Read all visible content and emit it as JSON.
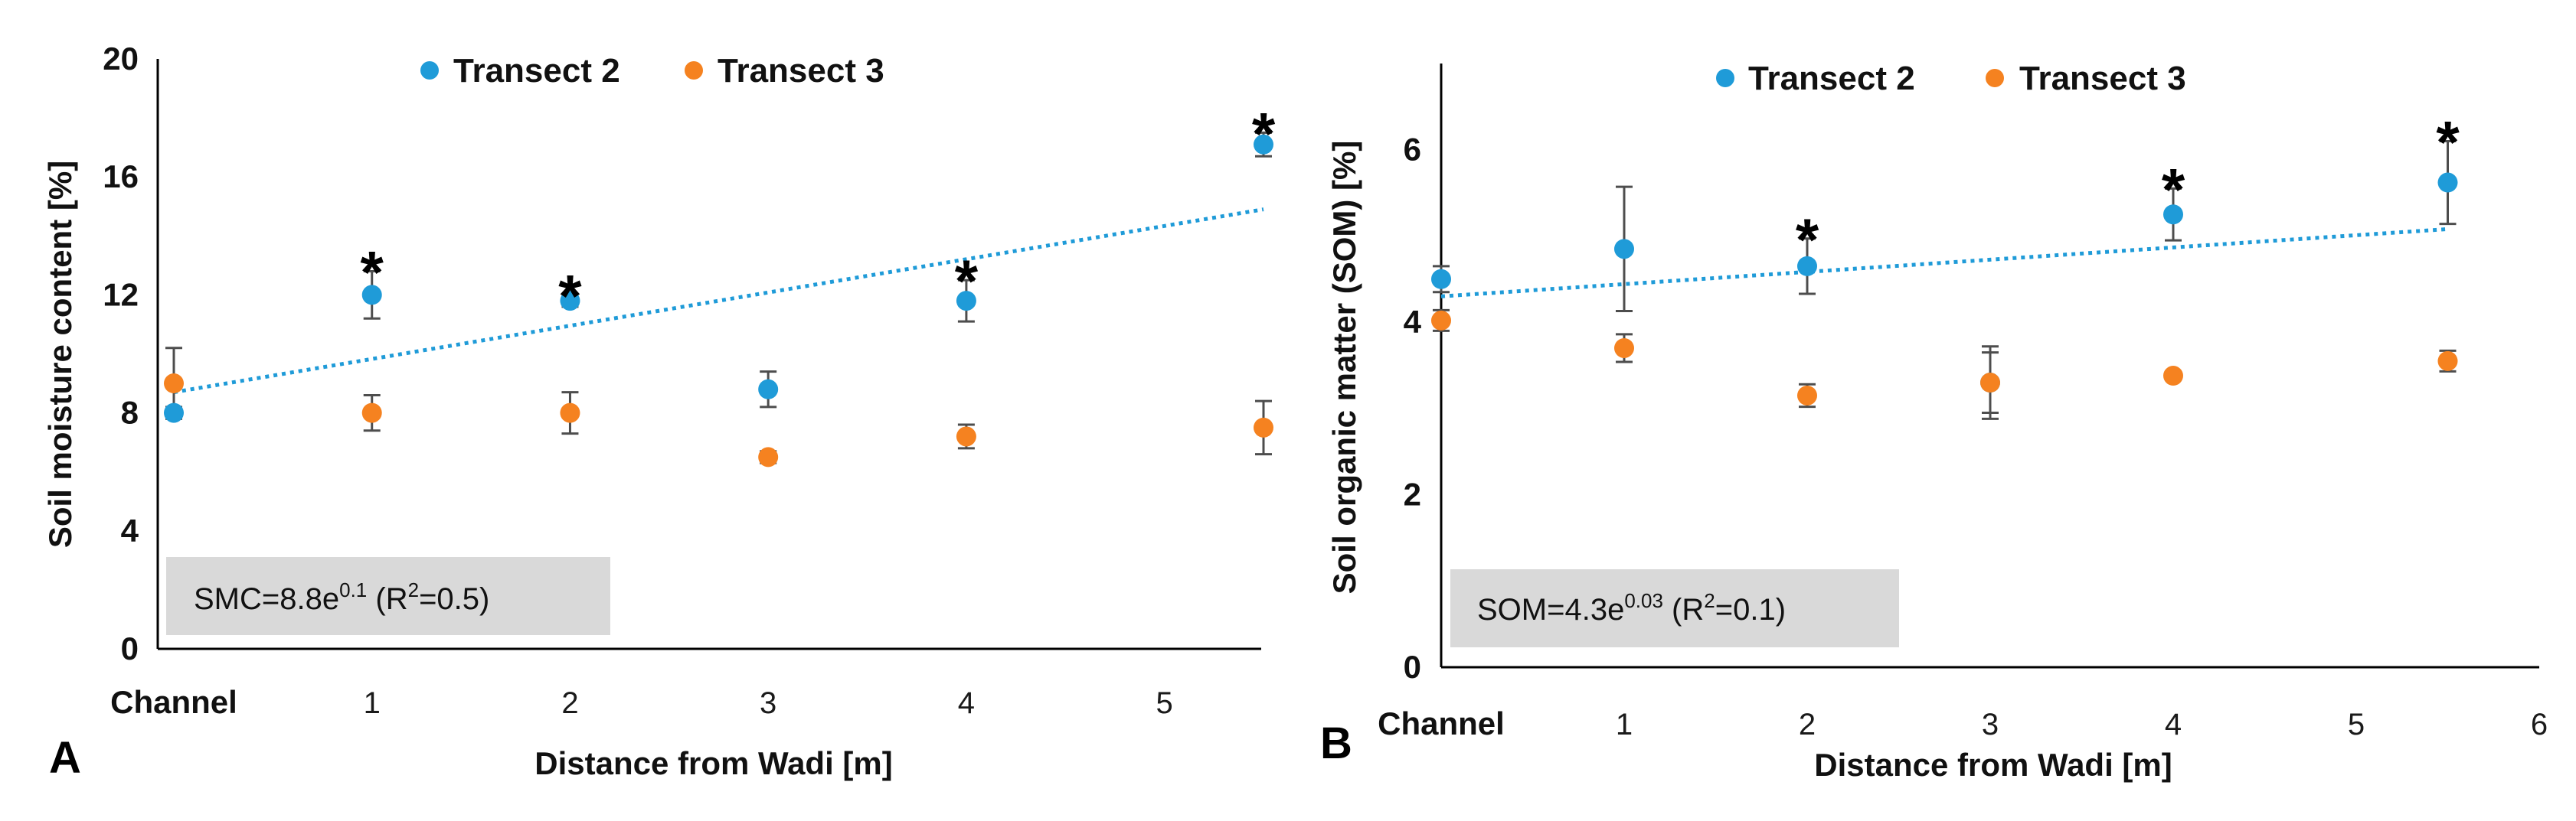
{
  "chart_data": [
    {
      "type": "scatter",
      "panel_label": "A",
      "ylabel": "Soil moisture content [%]",
      "xlabel": "Distance from Wadi [m]",
      "ylim": [
        0,
        20
      ],
      "xlim": [
        0,
        5.5
      ],
      "yticks": [
        "0",
        "4",
        "8",
        "12",
        "16",
        "20"
      ],
      "xticks": [
        {
          "value": 0,
          "label": "Channel"
        },
        {
          "value": 1,
          "label": "1"
        },
        {
          "value": 2,
          "label": "2"
        },
        {
          "value": 3,
          "label": "3"
        },
        {
          "value": 4,
          "label": "4"
        },
        {
          "value": 5,
          "label": "5"
        }
      ],
      "series": [
        {
          "name": "Transect 2",
          "color": "#1f9bd8",
          "points": [
            {
              "x": 0,
              "y": 8.0,
              "err": 0.2
            },
            {
              "x": 1,
              "y": 12.0,
              "err": 0.8
            },
            {
              "x": 2,
              "y": 11.8,
              "err": 0.2
            },
            {
              "x": 3,
              "y": 8.8,
              "err": 0.6
            },
            {
              "x": 4,
              "y": 11.8,
              "err": 0.7
            },
            {
              "x": 5.5,
              "y": 17.1,
              "err": 0.4
            }
          ]
        },
        {
          "name": "Transect 3",
          "color": "#f58220",
          "points": [
            {
              "x": 0,
              "y": 9.0,
              "err": 1.2
            },
            {
              "x": 1,
              "y": 8.0,
              "err": 0.6
            },
            {
              "x": 2,
              "y": 8.0,
              "err": 0.7
            },
            {
              "x": 3,
              "y": 6.5,
              "err": 0.2
            },
            {
              "x": 4,
              "y": 7.2,
              "err": 0.4
            },
            {
              "x": 5.5,
              "y": 7.5,
              "err": 0.9
            }
          ]
        }
      ],
      "trendline": {
        "series": "Transect 2",
        "color": "#1f9bd8",
        "x": [
          0,
          5.5
        ],
        "y": [
          8.7,
          14.9
        ]
      },
      "significance": [
        {
          "x": 1,
          "y": 12.0,
          "label": "*"
        },
        {
          "x": 2,
          "y": 11.8,
          "label": "*"
        },
        {
          "x": 4,
          "y": 11.8,
          "label": "*"
        },
        {
          "x": 5.5,
          "y": 17.1,
          "label": "*"
        }
      ],
      "equation": {
        "prefix": "SMC=8.8e",
        "exponent": "0.1",
        "r_open": " (R",
        "r_sup": "2",
        "r_close": "=0.5)"
      }
    },
    {
      "type": "scatter",
      "panel_label": "B",
      "ylabel": "Soil organic matter (SOM) [%]",
      "xlabel": "Distance from Wadi [m]",
      "ylim": [
        0,
        7
      ],
      "xlim": [
        0,
        6
      ],
      "yticks": [
        "0",
        "2",
        "4",
        "6"
      ],
      "xticks": [
        {
          "value": 0,
          "label": "Channel"
        },
        {
          "value": 1,
          "label": "1"
        },
        {
          "value": 2,
          "label": "2"
        },
        {
          "value": 3,
          "label": "3"
        },
        {
          "value": 4,
          "label": "4"
        },
        {
          "value": 5,
          "label": "5"
        },
        {
          "value": 6,
          "label": "6"
        }
      ],
      "series": [
        {
          "name": "Transect  2",
          "color": "#1f9bd8",
          "points": [
            {
              "x": 0,
              "y": 4.5,
              "err": 0.15
            },
            {
              "x": 1,
              "y": 4.85,
              "err": 0.72
            },
            {
              "x": 2,
              "y": 4.65,
              "err": 0.32
            },
            {
              "x": 3,
              "y": 3.3,
              "err": 0.35
            },
            {
              "x": 4,
              "y": 5.25,
              "err": 0.3
            },
            {
              "x": 5.5,
              "y": 5.62,
              "err": 0.48
            }
          ]
        },
        {
          "name": "Transect 3",
          "color": "#f58220",
          "points": [
            {
              "x": 0,
              "y": 4.02,
              "err": 0.12
            },
            {
              "x": 1,
              "y": 3.7,
              "err": 0.16
            },
            {
              "x": 2,
              "y": 3.15,
              "err": 0.13
            },
            {
              "x": 3,
              "y": 3.3,
              "err": 0.42
            },
            {
              "x": 4,
              "y": 3.38,
              "err": 0.05
            },
            {
              "x": 5.5,
              "y": 3.55,
              "err": 0.12
            }
          ]
        }
      ],
      "trendline": {
        "series": "Transect  2",
        "color": "#1f9bd8",
        "x": [
          0,
          5.5
        ],
        "y": [
          4.3,
          5.08
        ]
      },
      "significance": [
        {
          "x": 2,
          "y": 4.65,
          "label": "*"
        },
        {
          "x": 4,
          "y": 5.25,
          "label": "*"
        },
        {
          "x": 5.5,
          "y": 5.62,
          "label": "*"
        }
      ],
      "equation": {
        "prefix": "SOM=4.3e",
        "exponent": "0.03",
        "r_open": " (R",
        "r_sup": "2",
        "r_close": "=0.1)"
      }
    }
  ]
}
